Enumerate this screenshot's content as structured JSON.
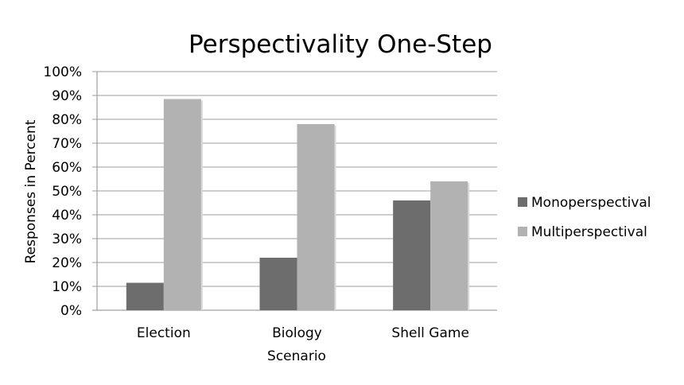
{
  "chart_data": {
    "type": "bar",
    "title": "Perspectivality One-Step",
    "xlabel": "Scenario",
    "ylabel": "Responses in Percent",
    "categories": [
      "Election",
      "Biology",
      "Shell Game"
    ],
    "series": [
      {
        "name": "Monoperspectival",
        "color": "#6d6d6d",
        "values": [
          11.5,
          22,
          46
        ]
      },
      {
        "name": "Multiperspectival",
        "color": "#b2b2b2",
        "values": [
          88.5,
          78,
          54
        ]
      }
    ],
    "ylim": [
      0,
      100
    ],
    "yticks": [
      "0%",
      "10%",
      "20%",
      "30%",
      "40%",
      "50%",
      "60%",
      "70%",
      "80%",
      "90%",
      "100%"
    ],
    "grid": true,
    "legend_position": "right"
  }
}
